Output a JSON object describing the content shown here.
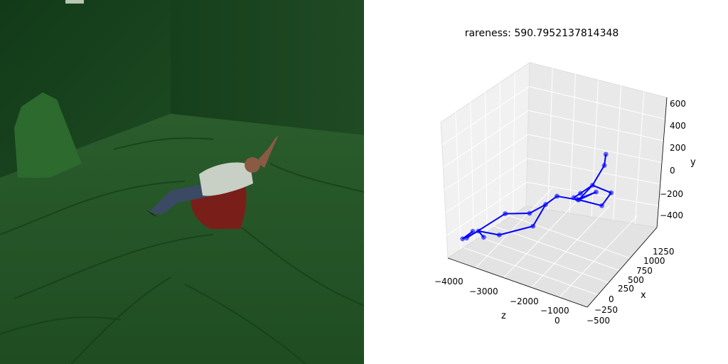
{
  "photo": {
    "subject": "person reclining on red chair in green screen studio",
    "colors": {
      "backdrop": "#1f4a22",
      "chair": "#7a1e1a",
      "shirt": "#c8cfc4",
      "jeans": "#3a4a63"
    }
  },
  "chart_data": {
    "type": "scatter3d",
    "title": "rareness: 590.7952137814348",
    "xlabel": "x",
    "ylabel": "y",
    "zlabel": "z",
    "xlim": [
      -500,
      1350
    ],
    "ylim": [
      -550,
      650
    ],
    "zlim": [
      -4000,
      300
    ],
    "x_ticks": [
      "−500",
      "−250",
      "0",
      "250",
      "500",
      "750",
      "1000",
      "1250"
    ],
    "y_ticks": [
      "−400",
      "−200",
      "0",
      "200",
      "400",
      "600"
    ],
    "z_ticks": [
      "−4000",
      "−3000",
      "−2000",
      "−1000",
      "0"
    ],
    "grid": true,
    "color": "#0000ff",
    "points": [
      {
        "x": 160,
        "y": 570,
        "z": 40
      },
      {
        "x": 150,
        "y": 470,
        "z": 30
      },
      {
        "x": 120,
        "y": 270,
        "z": -250
      },
      {
        "x": 80,
        "y": 180,
        "z": -550
      },
      {
        "x": 40,
        "y": 140,
        "z": -700
      },
      {
        "x": 90,
        "y": 110,
        "z": -600
      },
      {
        "x": 240,
        "y": 160,
        "z": -250
      },
      {
        "x": 150,
        "y": 80,
        "z": -700
      },
      {
        "x": 380,
        "y": 130,
        "z": 60
      },
      {
        "x": 330,
        "y": 10,
        "z": -140
      },
      {
        "x": 80,
        "y": 80,
        "z": -1250
      },
      {
        "x": 60,
        "y": -20,
        "z": -1550
      },
      {
        "x": 0,
        "y": -120,
        "z": -1950
      },
      {
        "x": -80,
        "y": -160,
        "z": -2600
      },
      {
        "x": 30,
        "y": -240,
        "z": -1850
      },
      {
        "x": -60,
        "y": -380,
        "z": -2750
      },
      {
        "x": -140,
        "y": -370,
        "z": -3300
      },
      {
        "x": -160,
        "y": -380,
        "z": -3450
      },
      {
        "x": -120,
        "y": -420,
        "z": -3150
      },
      {
        "x": -180,
        "y": -450,
        "z": -3600
      },
      {
        "x": -200,
        "y": -460,
        "z": -3700
      }
    ],
    "edges": [
      [
        0,
        1
      ],
      [
        1,
        2
      ],
      [
        2,
        3
      ],
      [
        3,
        4
      ],
      [
        2,
        5
      ],
      [
        5,
        6
      ],
      [
        6,
        7
      ],
      [
        2,
        8
      ],
      [
        8,
        9
      ],
      [
        9,
        7
      ],
      [
        5,
        10
      ],
      [
        10,
        11
      ],
      [
        11,
        12
      ],
      [
        12,
        13
      ],
      [
        13,
        19
      ],
      [
        11,
        14
      ],
      [
        14,
        15
      ],
      [
        15,
        16
      ],
      [
        16,
        20
      ],
      [
        16,
        18
      ],
      [
        17,
        20
      ]
    ]
  }
}
